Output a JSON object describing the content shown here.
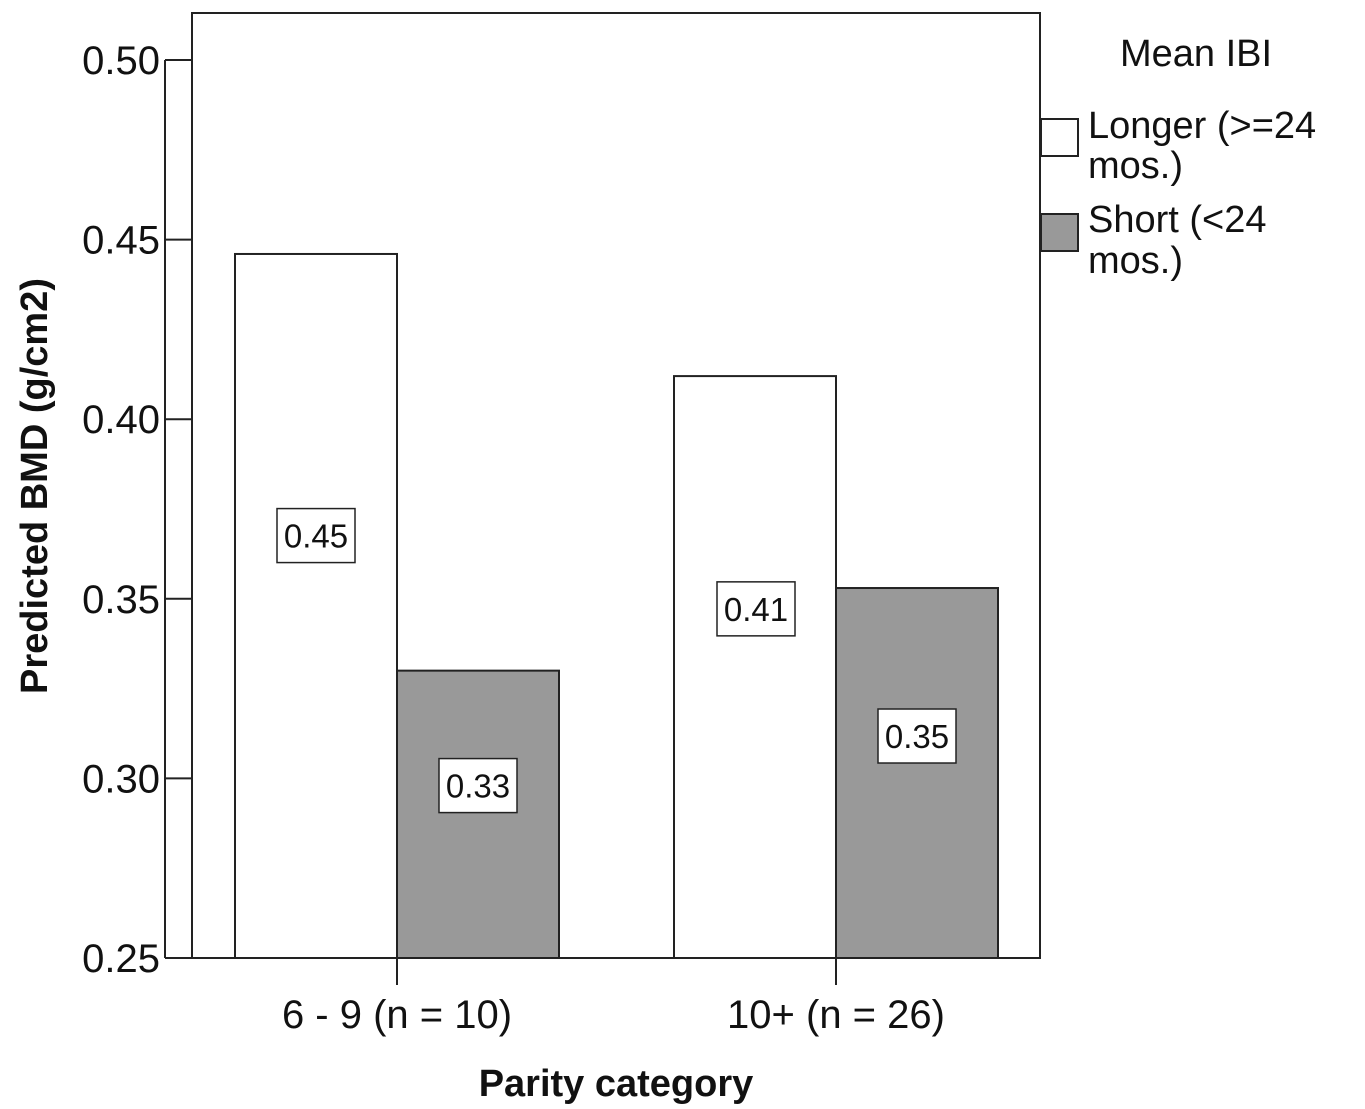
{
  "chart_data": {
    "type": "bar",
    "title": "",
    "xlabel": "Parity category",
    "ylabel": "Predicted BMD (g/cm2)",
    "ylim": [
      0.25,
      0.5
    ],
    "yticks": [
      "0.25",
      "0.30",
      "0.35",
      "0.40",
      "0.45",
      "0.50"
    ],
    "categories": [
      "6 - 9 (n = 10)",
      "10+ (n = 26)"
    ],
    "series": [
      {
        "name": "Longer (>=24 mos.)",
        "name_lines": [
          "Longer (>=24",
          "mos.)"
        ],
        "values": [
          0.446,
          0.412
        ],
        "labels": [
          "0.45",
          "0.41"
        ],
        "color": "#ffffff"
      },
      {
        "name": "Short (<24 mos.)",
        "name_lines": [
          "Short (<24",
          "mos.)"
        ],
        "values": [
          0.33,
          0.353
        ],
        "labels": [
          "0.33",
          "0.35"
        ],
        "color": "#999999"
      }
    ],
    "legend": {
      "title": "Mean IBI",
      "placement": "right"
    },
    "grid": false
  }
}
